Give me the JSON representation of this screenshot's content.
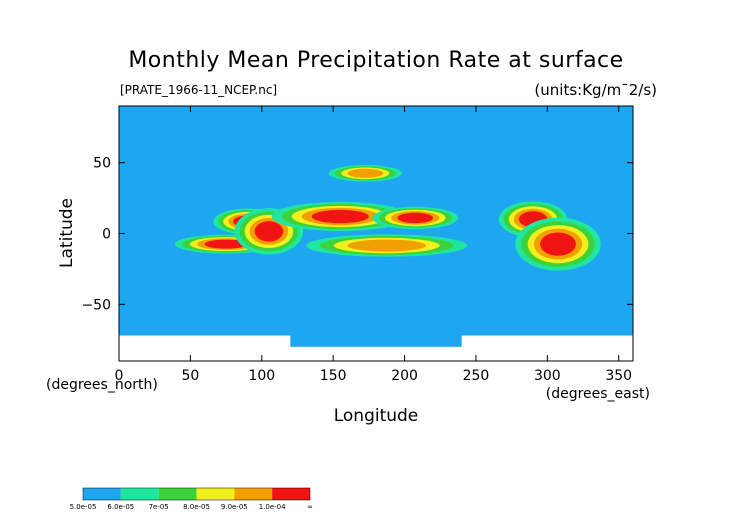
{
  "chart_data": {
    "type": "heatmap",
    "title": "Monthly Mean Precipitation Rate at surface",
    "subtitle": "[PRATE_1966-11_NCEP.nc]",
    "units": "(units:Kg/m¯2/s)",
    "xlabel": "Longitude",
    "ylabel": "Latitude",
    "x_unit_label": "(degrees_east)",
    "y_unit_label": "(degrees_north)",
    "xlim": [
      0,
      360
    ],
    "ylim": [
      -90,
      90
    ],
    "x_ticks": [
      0,
      50,
      100,
      150,
      200,
      250,
      300,
      350
    ],
    "y_ticks": [
      50,
      0,
      -50
    ],
    "background_level_color": "#1ea6f0",
    "missing_color": "#ffffff",
    "colorbar": {
      "labels": [
        "5.0e-05",
        "6.0e-05",
        "7e-05",
        "8.0e-05",
        "9.0e-05",
        "1.0e-04",
        "∞"
      ],
      "colors": [
        "#1ea6f0",
        "#1ee6a0",
        "#3cd23c",
        "#f0f01e",
        "#f0a000",
        "#f01414"
      ]
    },
    "heavy_regions": [
      {
        "lon": [
          60,
          90
        ],
        "lat": [
          -10,
          -5
        ],
        "level": 5
      },
      {
        "lon": [
          80,
          100
        ],
        "lat": [
          5,
          12
        ],
        "level": 5
      },
      {
        "lon": [
          95,
          115
        ],
        "lat": [
          -5,
          8
        ],
        "level": 5
      },
      {
        "lon": [
          135,
          175
        ],
        "lat": [
          8,
          16
        ],
        "level": 5
      },
      {
        "lon": [
          195,
          220
        ],
        "lat": [
          8,
          14
        ],
        "level": 5
      },
      {
        "lon": [
          160,
          215
        ],
        "lat": [
          -12,
          -5
        ],
        "level": 4
      },
      {
        "lon": [
          280,
          300
        ],
        "lat": [
          5,
          15
        ],
        "level": 5
      },
      {
        "lon": [
          295,
          320
        ],
        "lat": [
          -15,
          0
        ],
        "level": 5
      },
      {
        "lon": [
          160,
          185
        ],
        "lat": [
          40,
          45
        ],
        "level": 4
      }
    ]
  }
}
